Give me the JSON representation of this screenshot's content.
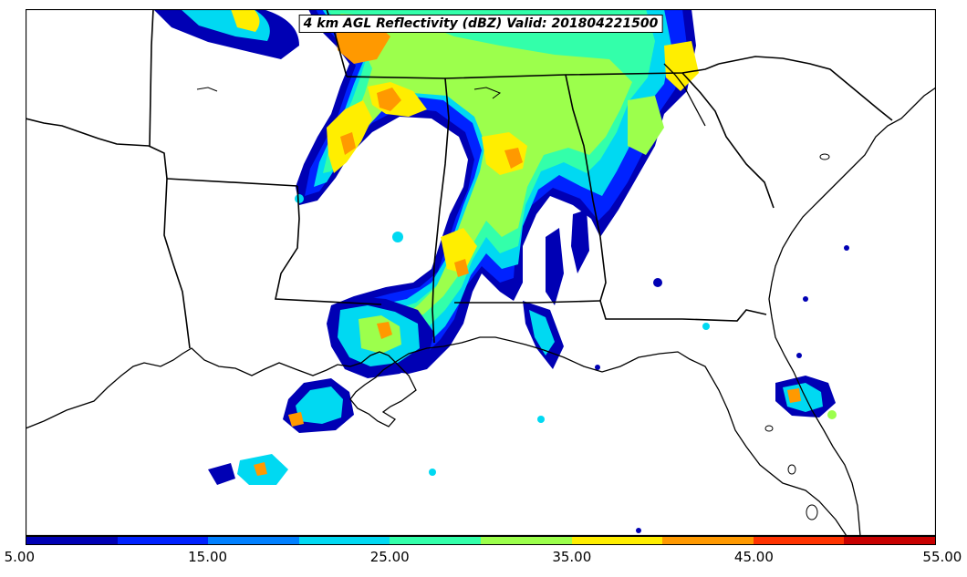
{
  "title": "4 km AGL Reflectivity (dBZ) Valid: 201804221500",
  "colorbar": {
    "colors": [
      "#0000b4",
      "#0022ff",
      "#0080ff",
      "#00d9f2",
      "#33ffaa",
      "#9cff4c",
      "#ffee00",
      "#ff9900",
      "#ff3300",
      "#c80000"
    ],
    "tick_labels": [
      "5.00",
      "15.00",
      "25.00",
      "35.00",
      "45.00",
      "55.00"
    ]
  },
  "palette": {
    "outer": "#0000b4",
    "blue": "#0022ff",
    "sky": "#0080ff",
    "cyan": "#00d9f2",
    "teal": "#33ffaa",
    "green": "#9cff4c",
    "yellow": "#ffee00",
    "orange": "#ff9900",
    "red": "#ff3300"
  }
}
